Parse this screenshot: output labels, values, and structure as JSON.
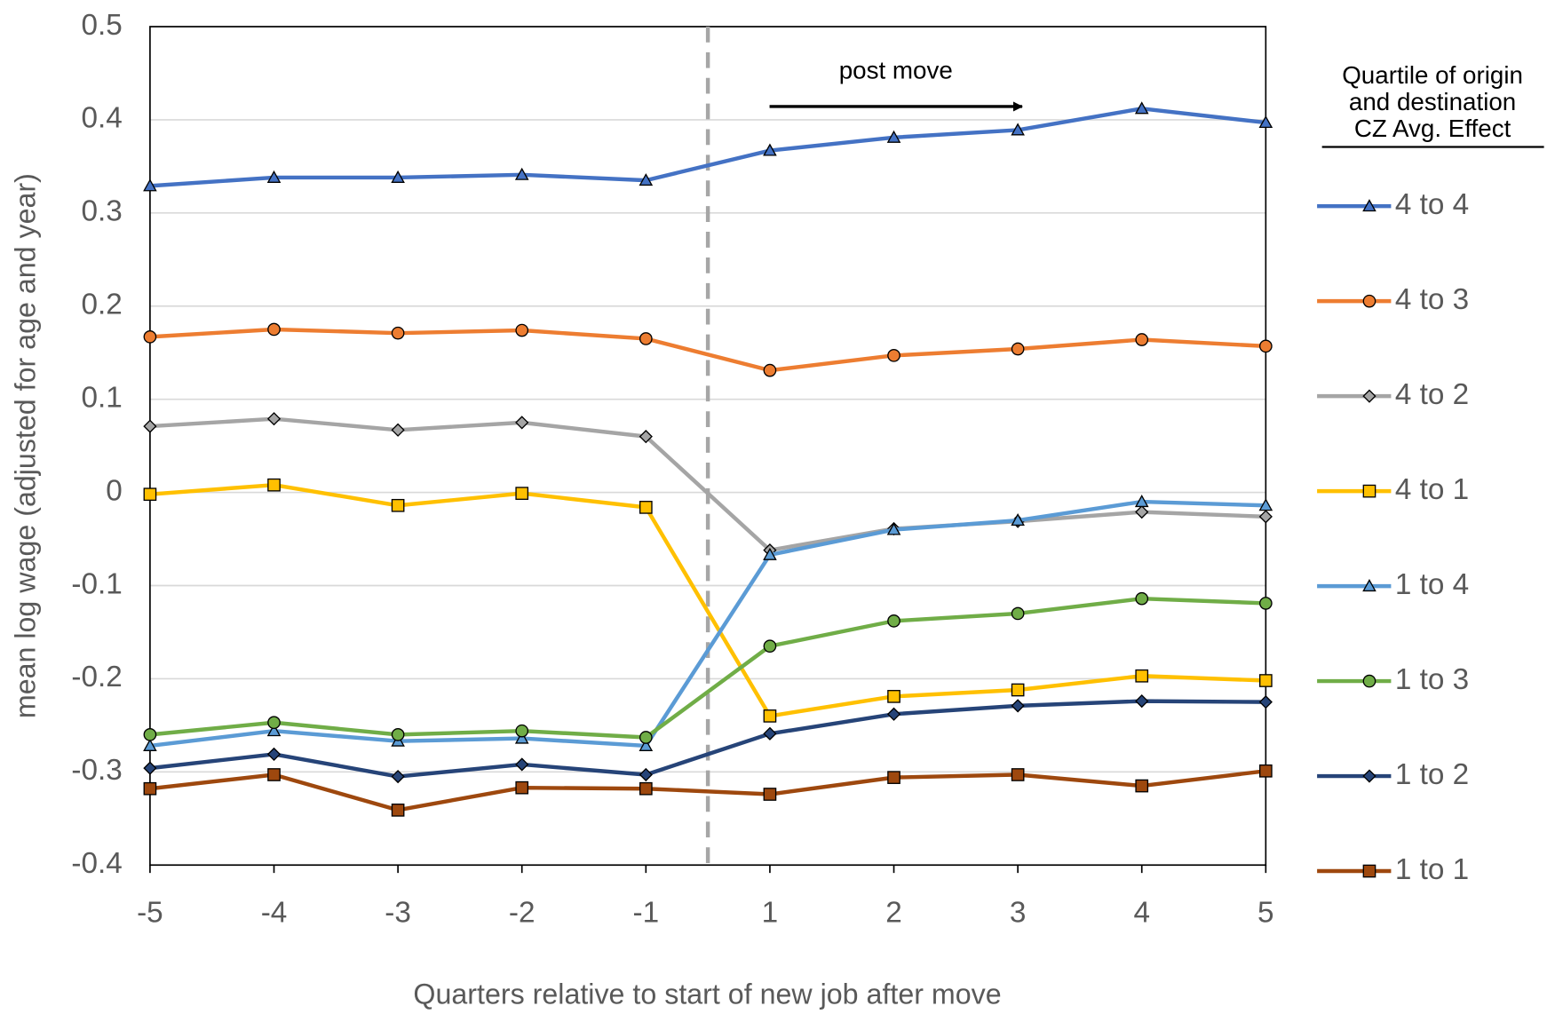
{
  "chart_data": {
    "type": "line",
    "x_label": "Quarters relative to start of new job after move",
    "y_label": "mean log wage (adjusted for age and year)",
    "annotation": "post move",
    "legend_title": [
      "Quartile of origin",
      "and destination",
      "CZ Avg. Effect"
    ],
    "legend_position": "right",
    "grid": true,
    "categories": [
      -5,
      -4,
      -3,
      -2,
      -1,
      1,
      2,
      3,
      4,
      5
    ],
    "ylim": [
      -0.4,
      0.5
    ],
    "yticks": [
      -0.4,
      -0.3,
      -0.2,
      -0.1,
      0,
      0.1,
      0.2,
      0.3,
      0.4,
      0.5
    ],
    "series": [
      {
        "name": "4 to 4",
        "color": "#4472c4",
        "marker": "triangle",
        "values": [
          0.329,
          0.338,
          0.338,
          0.341,
          0.335,
          0.367,
          0.381,
          0.389,
          0.412,
          0.397
        ]
      },
      {
        "name": "4 to 3",
        "color": "#ed7d31",
        "marker": "circle",
        "values": [
          0.167,
          0.175,
          0.171,
          0.174,
          0.165,
          0.131,
          0.147,
          0.154,
          0.164,
          0.157
        ]
      },
      {
        "name": "4 to 2",
        "color": "#a5a5a5",
        "marker": "diamond",
        "values": [
          0.071,
          0.079,
          0.067,
          0.075,
          0.06,
          -0.062,
          -0.039,
          -0.031,
          -0.021,
          -0.026
        ]
      },
      {
        "name": "4 to 1",
        "color": "#ffc000",
        "marker": "square",
        "values": [
          -0.002,
          0.008,
          -0.014,
          -0.001,
          -0.016,
          -0.24,
          -0.219,
          -0.212,
          -0.197,
          -0.202
        ]
      },
      {
        "name": "1 to 4",
        "color": "#5b9bd5",
        "marker": "triangle",
        "values": [
          -0.272,
          -0.256,
          -0.267,
          -0.264,
          -0.272,
          -0.067,
          -0.04,
          -0.03,
          -0.01,
          -0.014
        ]
      },
      {
        "name": "1 to 3",
        "color": "#70ad47",
        "marker": "circle",
        "values": [
          -0.26,
          -0.247,
          -0.26,
          -0.256,
          -0.263,
          -0.165,
          -0.138,
          -0.13,
          -0.114,
          -0.119
        ]
      },
      {
        "name": "1 to 2",
        "color": "#264478",
        "marker": "diamond",
        "values": [
          -0.296,
          -0.281,
          -0.305,
          -0.292,
          -0.303,
          -0.259,
          -0.238,
          -0.229,
          -0.224,
          -0.225
        ]
      },
      {
        "name": "1 to 1",
        "color": "#9e480e",
        "marker": "square",
        "values": [
          -0.318,
          -0.303,
          -0.341,
          -0.317,
          -0.318,
          -0.324,
          -0.306,
          -0.303,
          -0.315,
          -0.299
        ]
      }
    ]
  }
}
